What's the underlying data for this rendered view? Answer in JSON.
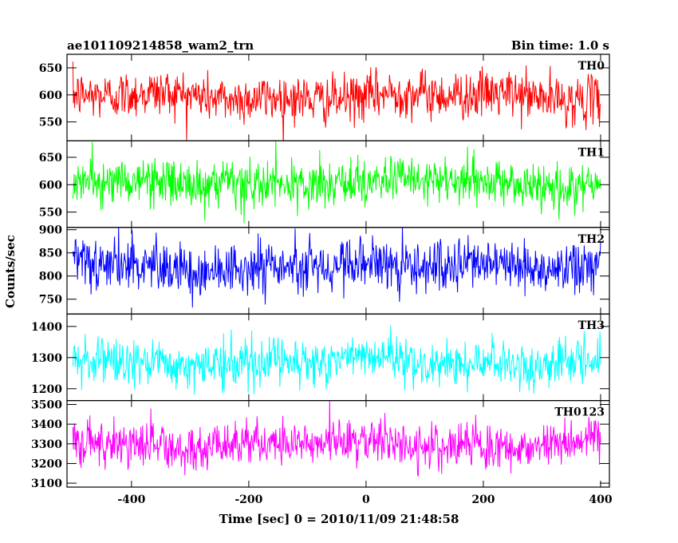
{
  "chart_data": {
    "type": "line",
    "title": "ae101109214858_wam2_trn",
    "subtitle": "Bin time: 1.0 s",
    "xlabel": "Time [sec] 0 = 2010/11/09 21:48:58",
    "ylabel": "Counts/sec",
    "xlim": [
      -510,
      415
    ],
    "xticks": [
      "-400",
      "-200",
      "0",
      "200",
      "400"
    ],
    "xtick_values": [
      -400,
      -200,
      0,
      200,
      400
    ],
    "x_start": -500,
    "x_end": 400,
    "bin": 1.0,
    "grid": false,
    "panels": [
      {
        "name": "TH0",
        "color": "#ff0000",
        "ylim": [
          515,
          675
        ],
        "yticks": [
          "550",
          "600",
          "650"
        ],
        "ytick_values": [
          550,
          600,
          650
        ],
        "mean": 597,
        "spread": 22
      },
      {
        "name": "TH1",
        "color": "#00ff00",
        "ylim": [
          522,
          680
        ],
        "yticks": [
          "550",
          "600",
          "650"
        ],
        "ytick_values": [
          550,
          600,
          650
        ],
        "mean": 602,
        "spread": 21
      },
      {
        "name": "TH2",
        "color": "#0000ff",
        "ylim": [
          718,
          905
        ],
        "yticks": [
          "750",
          "800",
          "850",
          "900"
        ],
        "ytick_values": [
          750,
          800,
          850,
          900
        ],
        "mean": 822,
        "spread": 28
      },
      {
        "name": "TH3",
        "color": "#00ffff",
        "ylim": [
          1162,
          1440
        ],
        "yticks": [
          "1200",
          "1300",
          "1400"
        ],
        "ytick_values": [
          1200,
          1300,
          1400
        ],
        "mean": 1285,
        "spread": 38
      },
      {
        "name": "TH0123",
        "color": "#ff00ff",
        "ylim": [
          3080,
          3520
        ],
        "yticks": [
          "3100",
          "3200",
          "3300",
          "3400",
          "3500"
        ],
        "ytick_values": [
          3100,
          3200,
          3300,
          3400,
          3500
        ],
        "mean": 3300,
        "spread": 58
      }
    ]
  }
}
